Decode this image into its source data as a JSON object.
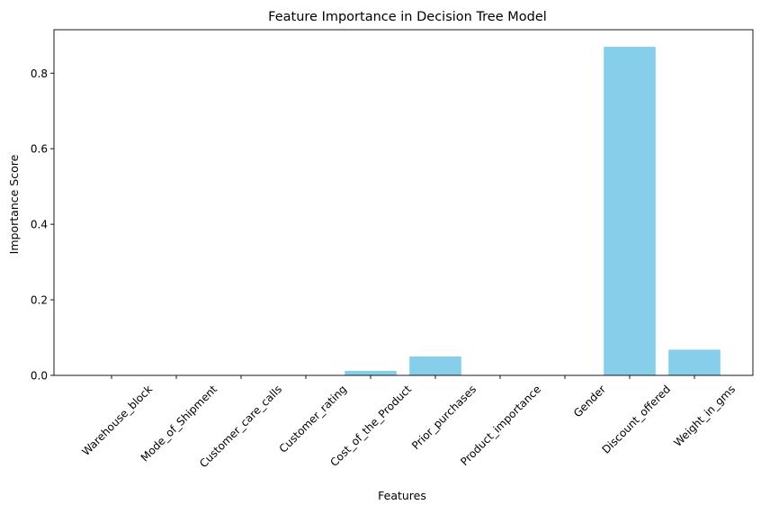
{
  "chart_data": {
    "type": "bar",
    "title": "Feature Importance in Decision Tree Model",
    "xlabel": "Features",
    "ylabel": "Importance Score",
    "categories": [
      "Warehouse_block",
      "Mode_of_Shipment",
      "Customer_care_calls",
      "Customer_rating",
      "Cost_of_the_Product",
      "Prior_purchases",
      "Product_importance",
      "Gender",
      "Discount_offered",
      "Weight_in_gms"
    ],
    "values": [
      0.0,
      0.0,
      0.0,
      0.0,
      0.012,
      0.05,
      0.0,
      0.0,
      0.87,
      0.068
    ],
    "ylim": [
      0,
      0.915
    ],
    "yticks": [
      0.0,
      0.2,
      0.4,
      0.6,
      0.8
    ],
    "ytick_labels": [
      "0.0",
      "0.2",
      "0.4",
      "0.6",
      "0.8"
    ],
    "bar_color": "#87ceeb",
    "grid": false,
    "legend": "none"
  }
}
